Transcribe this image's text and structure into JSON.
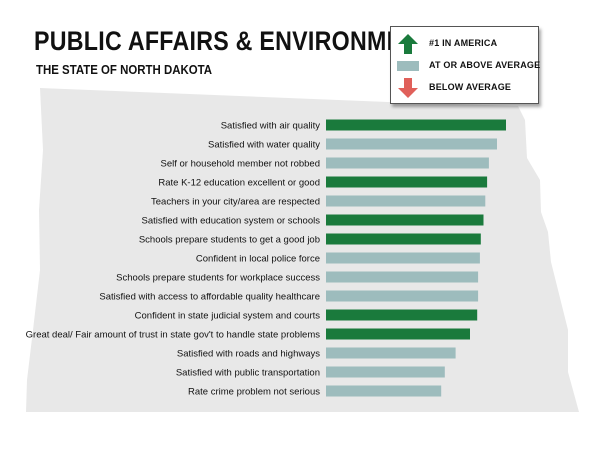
{
  "header": {
    "title": "PUBLIC AFFAIRS & ENVIRONMENT",
    "subtitle": "THE STATE OF NORTH DAKOTA"
  },
  "legend": {
    "items": [
      {
        "label": "#1 IN AMERICA",
        "icon": "up-arrow-icon",
        "color": "#1a7a3c"
      },
      {
        "label": "AT OR ABOVE AVERAGE",
        "icon": "bar-swatch-icon",
        "color": "#9dbcbd"
      },
      {
        "label": "BELOW AVERAGE",
        "icon": "down-arrow-icon",
        "color": "#e0605a"
      }
    ]
  },
  "colors": {
    "rank1": "#1a7a3c",
    "above_average": "#9dbcbd",
    "below_average": "#e0605a",
    "map_fill": "#e8e8e8"
  },
  "chart_data": {
    "type": "bar",
    "orientation": "horizontal",
    "title": "PUBLIC AFFAIRS & ENVIRONMENT",
    "subtitle": "THE STATE OF NORTH DAKOTA",
    "xlabel": "",
    "ylabel": "",
    "grid": false,
    "axis_ticks_shown": false,
    "legend_position": "top-right",
    "value_scale": "relative (0 to 1, no axis shown)",
    "categories": [
      "Satisfied with air quality",
      "Satisfied with water quality",
      "Self or household member not robbed",
      "Rate K-12 education excellent or good",
      "Teachers in your city/area are respected",
      "Satisfied with education system or schools",
      "Schools prepare students to get a good job",
      "Confident in local police force",
      "Schools prepare students for workplace success",
      "Satisfied with access to affordable quality healthcare",
      "Confident in state judicial system and courts",
      "Great deal/ Fair amount of trust in state gov't to handle state problems",
      "Satisfied with roads and highways",
      "Satisfied with public transportation",
      "Rate crime problem not serious"
    ],
    "values": [
      1.0,
      0.95,
      0.905,
      0.895,
      0.885,
      0.875,
      0.86,
      0.855,
      0.845,
      0.845,
      0.84,
      0.8,
      0.72,
      0.66,
      0.64
    ],
    "status": [
      "#1 IN AMERICA",
      "AT OR ABOVE AVERAGE",
      "AT OR ABOVE AVERAGE",
      "#1 IN AMERICA",
      "AT OR ABOVE AVERAGE",
      "#1 IN AMERICA",
      "#1 IN AMERICA",
      "AT OR ABOVE AVERAGE",
      "AT OR ABOVE AVERAGE",
      "AT OR ABOVE AVERAGE",
      "#1 IN AMERICA",
      "#1 IN AMERICA",
      "AT OR ABOVE AVERAGE",
      "AT OR ABOVE AVERAGE",
      "AT OR ABOVE AVERAGE"
    ]
  }
}
